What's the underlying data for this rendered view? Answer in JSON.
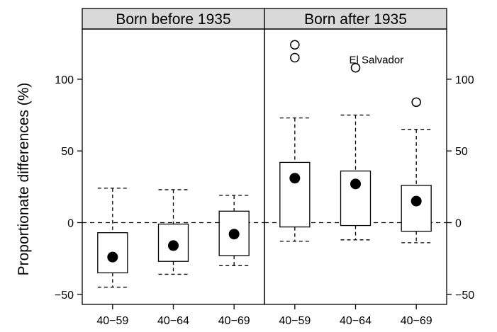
{
  "chart_data": {
    "type": "box",
    "ylabel": "Proportionate differences (%)",
    "ylim": [
      -57,
      135
    ],
    "yticks": [
      -50,
      0,
      50,
      100
    ],
    "reference_line": 0,
    "panels": [
      {
        "title": "Born before 1935",
        "categories": [
          "40−59",
          "40−64",
          "40−69"
        ],
        "boxes": [
          {
            "whisker_low": -45,
            "q1": -35,
            "median": -24,
            "q3": -7,
            "whisker_high": 24,
            "outliers": []
          },
          {
            "whisker_low": -36,
            "q1": -27,
            "median": -16,
            "q3": -1,
            "whisker_high": 23,
            "outliers": []
          },
          {
            "whisker_low": -30,
            "q1": -23,
            "median": -8,
            "q3": 8,
            "whisker_high": 19,
            "outliers": []
          }
        ]
      },
      {
        "title": "Born after 1935",
        "categories": [
          "40−59",
          "40−64",
          "40−69"
        ],
        "boxes": [
          {
            "whisker_low": -13,
            "q1": -3,
            "median": 31,
            "q3": 42,
            "whisker_high": 73,
            "outliers": [
              124,
              115
            ]
          },
          {
            "whisker_low": -12,
            "q1": -2,
            "median": 27,
            "q3": 36,
            "whisker_high": 75,
            "outliers": [
              108
            ]
          },
          {
            "whisker_low": -14,
            "q1": -6,
            "median": 15,
            "q3": 26,
            "whisker_high": 65,
            "outliers": [
              84
            ]
          }
        ]
      }
    ],
    "annotations": [
      {
        "text": "El Salvador",
        "panel": 1,
        "category": 1,
        "y": 114
      }
    ]
  }
}
